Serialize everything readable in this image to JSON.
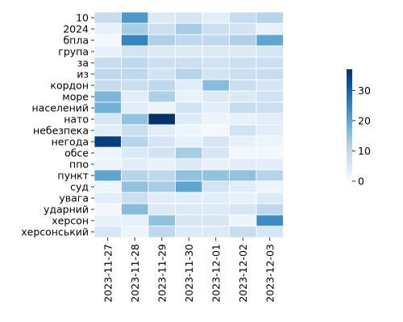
{
  "chart_data": {
    "type": "heatmap",
    "title": "",
    "xlabel": "",
    "ylabel": "",
    "x": [
      "2023-11-27",
      "2023-11-28",
      "2023-11-29",
      "2023-11-30",
      "2023-12-01",
      "2023-12-02",
      "2023-12-03"
    ],
    "y": [
      "10",
      "2024",
      "бпла",
      "група",
      "за",
      "из",
      "кордон",
      "море",
      "населений",
      "нато",
      "небезпека",
      "негода",
      "обсе",
      "ппо",
      "пункт",
      "суд",
      "увага",
      "ударний",
      "херсон",
      "херсонський"
    ],
    "values": [
      [
        9,
        22,
        5,
        6,
        4,
        9,
        11
      ],
      [
        3,
        13,
        8,
        13,
        8,
        7,
        3
      ],
      [
        1,
        25,
        12,
        10,
        10,
        12,
        20
      ],
      [
        3,
        7,
        5,
        5,
        5,
        5,
        6
      ],
      [
        9,
        10,
        8,
        8,
        7,
        8,
        8
      ],
      [
        10,
        10,
        7,
        11,
        7,
        8,
        9
      ],
      [
        9,
        8,
        10,
        4,
        16,
        8,
        6
      ],
      [
        17,
        4,
        12,
        3,
        5,
        5,
        7
      ],
      [
        18,
        4,
        2,
        7,
        4,
        9,
        8
      ],
      [
        6,
        15,
        37,
        5,
        2,
        3,
        4
      ],
      [
        4,
        8,
        4,
        2,
        1,
        7,
        4
      ],
      [
        35,
        11,
        6,
        3,
        6,
        3,
        2
      ],
      [
        2,
        5,
        7,
        13,
        6,
        1,
        1
      ],
      [
        2,
        4,
        3,
        5,
        3,
        4,
        4
      ],
      [
        20,
        11,
        10,
        15,
        15,
        15,
        11
      ],
      [
        2,
        15,
        13,
        20,
        7,
        4,
        2
      ],
      [
        4,
        8,
        4,
        4,
        4,
        3,
        5
      ],
      [
        1,
        16,
        5,
        5,
        5,
        6,
        10
      ],
      [
        3,
        3,
        15,
        6,
        6,
        2,
        24
      ],
      [
        6,
        2,
        10,
        5,
        5,
        9,
        6
      ]
    ],
    "vmin": 0,
    "vmax": 37,
    "colorbar_ticks": [
      0,
      10,
      20,
      30
    ],
    "colormap": [
      "#f7fbff",
      "#deebf7",
      "#c6dbef",
      "#9ecae1",
      "#6baed6",
      "#4292c6",
      "#2171b5",
      "#08519c",
      "#08306b"
    ],
    "cell_border_color": "#ffffff",
    "legend": "colorbar-right"
  }
}
